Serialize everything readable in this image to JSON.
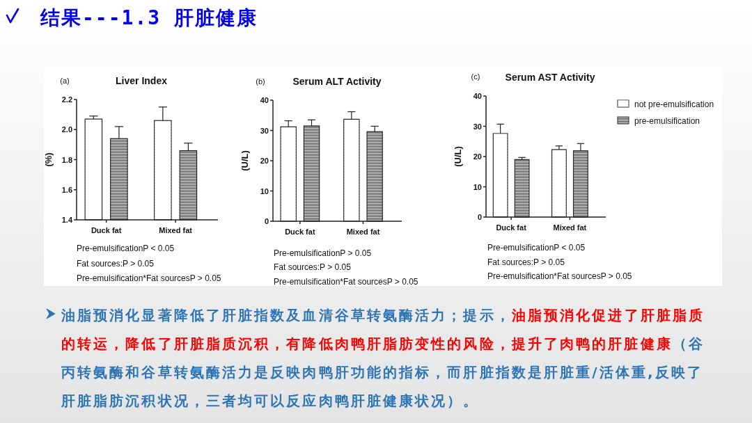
{
  "chart_data": [
    {
      "type": "bar",
      "title": "Liver Index",
      "ylabel": "(%)",
      "categories": [
        "Duck fat",
        "Mixed fat"
      ],
      "series": [
        {
          "color": "#ffffff",
          "values": [
            2.07,
            2.06
          ],
          "errors": [
            [
              2.07,
              2.09
            ],
            [
              2.06,
              2.15
            ]
          ]
        },
        {
          "color": "#808080",
          "values": [
            1.94,
            1.86
          ],
          "errors": [
            [
              1.94,
              2.02
            ],
            [
              1.86,
              1.91
            ]
          ]
        }
      ],
      "ylim": [
        1.4,
        2.2
      ],
      "yticks": [
        1.4,
        1.6,
        1.8,
        {
          "value": 2,
          "label": "2.0"
        },
        2.2
      ],
      "annotations": [
        "(a)",
        "Pre-emulsificationP < 0.05",
        "Fat sources:P > 0.05",
        "Pre-emulsification*Fat sourcesP > 0.05"
      ]
    },
    {
      "type": "bar",
      "title": "Serum ALT Activity",
      "ylabel": "(U/L)",
      "categories": [
        "Duck fat",
        "Mixed fat"
      ],
      "series": [
        {
          "color": "#ffffff",
          "values": [
            31.2,
            33.7
          ],
          "errors": [
            [
              31.2,
              33.2
            ],
            [
              33.7,
              36.2
            ]
          ]
        },
        {
          "color": "#808080",
          "values": [
            31.5,
            29.6
          ],
          "errors": [
            [
              31.5,
              33.5
            ],
            [
              29.6,
              31.4
            ]
          ]
        }
      ],
      "ylim": [
        0,
        40
      ],
      "yticks": [
        0,
        10,
        20,
        30,
        40
      ],
      "annotations": [
        "(b)",
        "Pre-emulsificationP > 0.05",
        "Fat sources:P > 0.05",
        "Pre-emulsification*Fat sourcesP > 0.05"
      ]
    },
    {
      "type": "bar",
      "title": "Serum AST Activity",
      "ylabel": "(U/L)",
      "categories": [
        "Duck fat",
        "Mixed fat"
      ],
      "series": [
        {
          "name": "not pre-emulsification",
          "color": "#ffffff",
          "values": [
            27.6,
            22.3
          ],
          "errors": [
            [
              27.6,
              30.7
            ],
            [
              22.3,
              23.5
            ]
          ]
        },
        {
          "name": "pre-emulsification",
          "color": "#808080",
          "values": [
            19.0,
            21.9
          ],
          "errors": [
            [
              19.0,
              19.7
            ],
            [
              21.9,
              24.3
            ]
          ]
        }
      ],
      "ylim": [
        0,
        40
      ],
      "yticks": [
        0,
        10,
        20,
        30,
        40
      ],
      "legend": "right",
      "annotations": [
        "(c)",
        "Pre-emulsificationP < 0.05",
        "Fat sources:P > 0.05",
        "Pre-emulsification*Fat sourcesP > 0.05"
      ]
    },
    {
      "type": "other",
      "title": "结果---1.3 肝脏健康",
      "annotations": [
        "油脂预消化显著降低了肝脏指数及血清谷草转氨酶活力；提示，",
        "油脂预消化促进了肝脏脂质的转运，降低了肝脏脂质沉积，有降低肉鸭肝脂肪变性的风险，提升了肉鸭的肝脏健康",
        "（谷丙转氨酶和谷草转氨酶活力是反映肉鸭肝功能的指标，而肝脏指数是肝脏重/活体重,反映了肝脏脂肪沉积状况，三者均可以反应肉鸭肝脏健康状况）。"
      ]
    }
  ]
}
